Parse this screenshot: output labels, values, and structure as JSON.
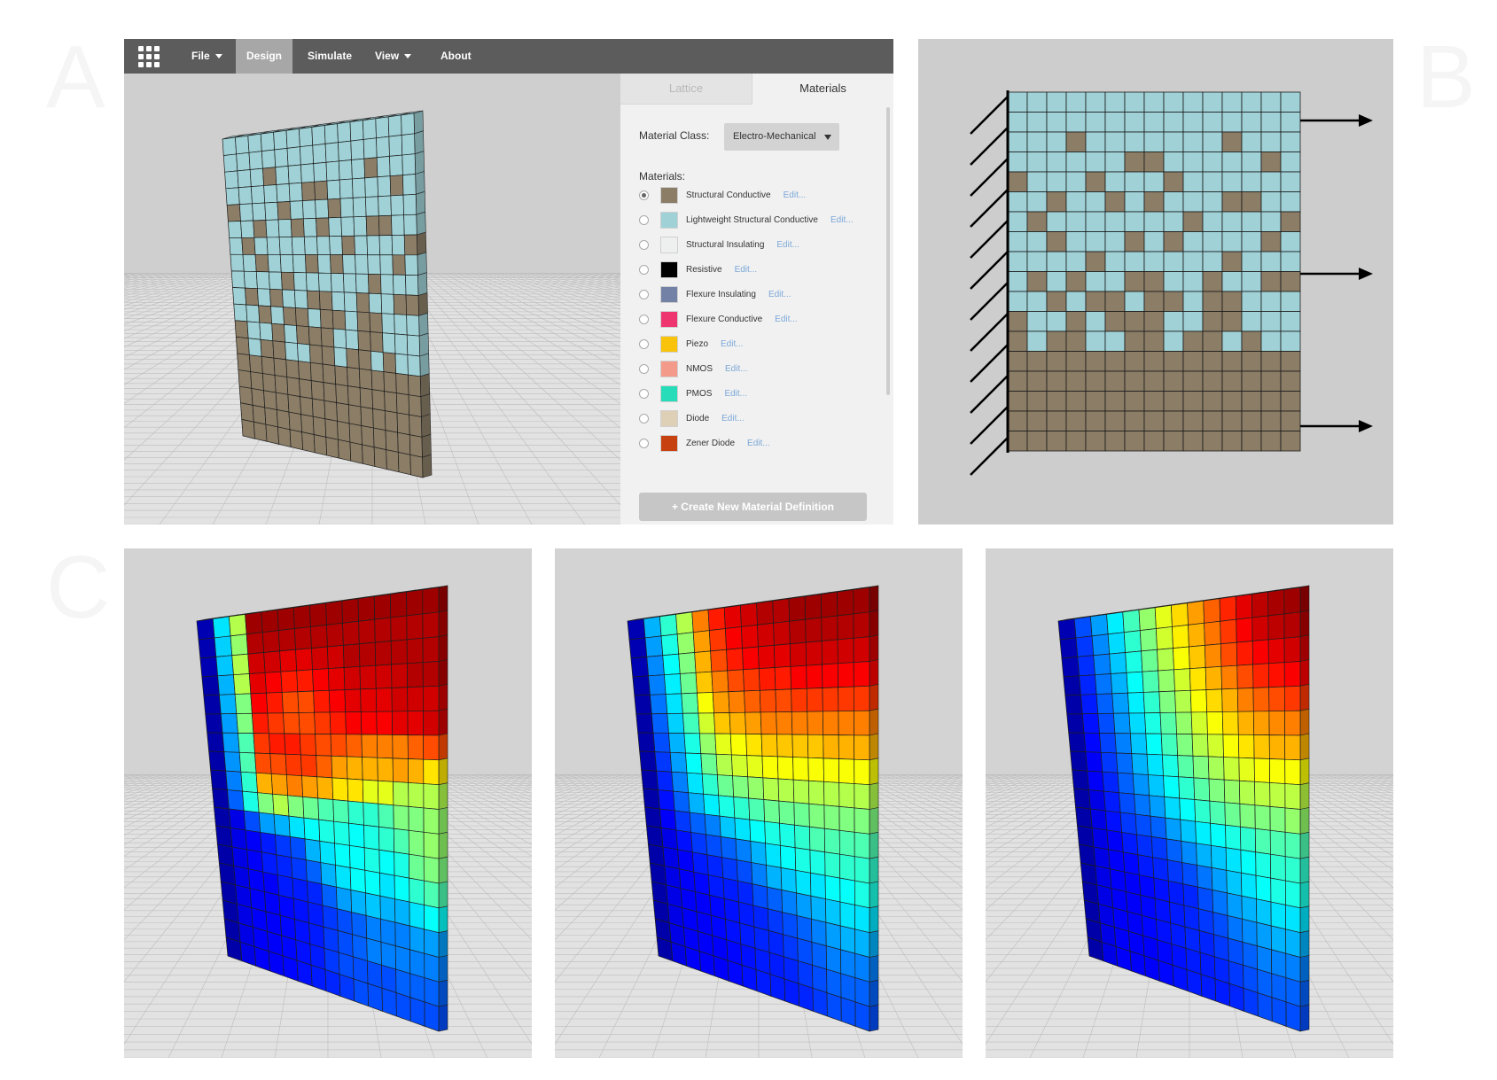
{
  "panel_letters": {
    "a": "A",
    "b": "B",
    "c": "C"
  },
  "menubar": {
    "file": "File",
    "design": "Design",
    "simulate": "Simulate",
    "view": "View",
    "about": "About"
  },
  "tabs": {
    "lattice": "Lattice",
    "materials": "Materials"
  },
  "material_class": {
    "label": "Material Class:",
    "value": "Electro-Mechanical"
  },
  "materials_heading": "Materials:",
  "edit_label": "Edit...",
  "materials": [
    {
      "name": "Structural Conductive",
      "color": "#8b7d66",
      "selected": true
    },
    {
      "name": "Lightweight Structural Conductive",
      "color": "#9fd1d6",
      "selected": false
    },
    {
      "name": "Structural Insulating",
      "color": "#eef0ef",
      "selected": false
    },
    {
      "name": "Resistive",
      "color": "#000000",
      "selected": false
    },
    {
      "name": "Flexure Insulating",
      "color": "#7481a6",
      "selected": false
    },
    {
      "name": "Flexure Conductive",
      "color": "#ee3570",
      "selected": false
    },
    {
      "name": "Piezo",
      "color": "#f9c20b",
      "selected": false
    },
    {
      "name": "NMOS",
      "color": "#f39a8a",
      "selected": false
    },
    {
      "name": "PMOS",
      "color": "#27dcb8",
      "selected": false
    },
    {
      "name": "Diode",
      "color": "#ddd0b7",
      "selected": false
    },
    {
      "name": "Zener Diode",
      "color": "#c6410f",
      "selected": false
    }
  ],
  "create_button": "+ Create New Material Definition",
  "colors": {
    "structural": "#8b7d66",
    "lightweight": "#9fd1d6",
    "menubar": "#5c5c5c"
  },
  "lattice_pattern": [
    "LLLLLLLLLLLLLLL",
    "LLLLLLLLLLLLLLL",
    "LLLSLLLLLLLSLLL",
    "LLLLLLSSLLLLLSL",
    "SLLLSLLLSLLLLLL",
    "LLSLLSLSLLLSSLL",
    "LSLLLLLLLSLLLLS",
    "LLSLLLSLSLLLLSL",
    "LLLLSLLLLLLSLLL",
    "LSLSLLSSLLSLLSS",
    "LLSLSSLSSLSSLLL",
    "SLLSLSSSLLSSLLL",
    "SLSSLLSSLSSLSLL",
    "SSSSSSSSSSSSSSS",
    "SSSSSSSSSSSSSSS",
    "SSSSSSSSSSSSSSS",
    "SSSSSSSSSSSSSSS",
    "SSSSSSSSSSSSSSS"
  ],
  "simulations": [
    {
      "field": [
        [
          0.05,
          0.35,
          0.55,
          0.97,
          0.97,
          0.97,
          0.97,
          0.97,
          0.97,
          0.97,
          0.97,
          0.97,
          0.97,
          0.97,
          0.97
        ],
        [
          0.05,
          0.33,
          0.52,
          0.95,
          0.95,
          0.95,
          0.95,
          0.95,
          0.95,
          0.95,
          0.95,
          0.95,
          0.95,
          0.95,
          0.95
        ],
        [
          0.05,
          0.32,
          0.55,
          0.92,
          0.92,
          0.9,
          0.9,
          0.92,
          0.92,
          0.95,
          0.95,
          0.95,
          0.95,
          0.95,
          0.95
        ],
        [
          0.04,
          0.3,
          0.55,
          0.9,
          0.88,
          0.85,
          0.85,
          0.88,
          0.9,
          0.92,
          0.92,
          0.92,
          0.93,
          0.95,
          0.95
        ],
        [
          0.04,
          0.3,
          0.5,
          0.88,
          0.85,
          0.8,
          0.8,
          0.85,
          0.88,
          0.9,
          0.9,
          0.9,
          0.92,
          0.92,
          0.92
        ],
        [
          0.04,
          0.28,
          0.5,
          0.85,
          0.82,
          0.8,
          0.8,
          0.82,
          0.85,
          0.88,
          0.88,
          0.88,
          0.9,
          0.9,
          0.92
        ],
        [
          0.04,
          0.28,
          0.45,
          0.82,
          0.85,
          0.85,
          0.82,
          0.8,
          0.8,
          0.78,
          0.75,
          0.75,
          0.75,
          0.78,
          0.8
        ],
        [
          0.04,
          0.27,
          0.45,
          0.8,
          0.8,
          0.82,
          0.82,
          0.78,
          0.72,
          0.7,
          0.7,
          0.7,
          0.72,
          0.7,
          0.65
        ],
        [
          0.04,
          0.25,
          0.42,
          0.7,
          0.72,
          0.75,
          0.72,
          0.7,
          0.65,
          0.65,
          0.6,
          0.6,
          0.55,
          0.55,
          0.55
        ],
        [
          0.04,
          0.22,
          0.4,
          0.5,
          0.55,
          0.5,
          0.48,
          0.45,
          0.45,
          0.42,
          0.42,
          0.45,
          0.5,
          0.5,
          0.52
        ],
        [
          0.04,
          0.1,
          0.2,
          0.28,
          0.3,
          0.35,
          0.38,
          0.4,
          0.4,
          0.38,
          0.4,
          0.42,
          0.45,
          0.5,
          0.52
        ],
        [
          0.04,
          0.1,
          0.12,
          0.15,
          0.18,
          0.2,
          0.3,
          0.35,
          0.38,
          0.38,
          0.4,
          0.38,
          0.4,
          0.48,
          0.5
        ],
        [
          0.04,
          0.1,
          0.12,
          0.15,
          0.16,
          0.18,
          0.22,
          0.3,
          0.35,
          0.38,
          0.38,
          0.35,
          0.38,
          0.42,
          0.45
        ],
        [
          0.04,
          0.1,
          0.12,
          0.12,
          0.15,
          0.15,
          0.16,
          0.22,
          0.28,
          0.3,
          0.32,
          0.3,
          0.3,
          0.35,
          0.38
        ],
        [
          0.04,
          0.1,
          0.12,
          0.12,
          0.13,
          0.14,
          0.15,
          0.18,
          0.2,
          0.22,
          0.25,
          0.25,
          0.25,
          0.28,
          0.28
        ],
        [
          0.04,
          0.1,
          0.12,
          0.12,
          0.13,
          0.14,
          0.15,
          0.18,
          0.2,
          0.22,
          0.25,
          0.25,
          0.25,
          0.25,
          0.25
        ],
        [
          0.04,
          0.1,
          0.12,
          0.12,
          0.13,
          0.14,
          0.15,
          0.18,
          0.2,
          0.2,
          0.2,
          0.2,
          0.22,
          0.22,
          0.22
        ],
        [
          0.04,
          0.1,
          0.12,
          0.12,
          0.13,
          0.14,
          0.15,
          0.16,
          0.18,
          0.2,
          0.2,
          0.2,
          0.2,
          0.2,
          0.2
        ]
      ]
    },
    {
      "field": [
        [
          0.05,
          0.3,
          0.42,
          0.55,
          0.75,
          0.85,
          0.9,
          0.92,
          0.95,
          0.95,
          0.97,
          0.97,
          0.97,
          0.97,
          0.97
        ],
        [
          0.05,
          0.28,
          0.4,
          0.52,
          0.72,
          0.82,
          0.88,
          0.9,
          0.92,
          0.93,
          0.95,
          0.95,
          0.95,
          0.95,
          0.95
        ],
        [
          0.05,
          0.26,
          0.38,
          0.5,
          0.7,
          0.8,
          0.85,
          0.88,
          0.9,
          0.9,
          0.92,
          0.92,
          0.92,
          0.92,
          0.92
        ],
        [
          0.04,
          0.25,
          0.36,
          0.48,
          0.68,
          0.75,
          0.8,
          0.82,
          0.85,
          0.85,
          0.88,
          0.88,
          0.88,
          0.88,
          0.88
        ],
        [
          0.04,
          0.24,
          0.35,
          0.46,
          0.62,
          0.72,
          0.75,
          0.78,
          0.8,
          0.8,
          0.82,
          0.82,
          0.82,
          0.82,
          0.82
        ],
        [
          0.04,
          0.22,
          0.33,
          0.44,
          0.58,
          0.68,
          0.7,
          0.72,
          0.75,
          0.75,
          0.75,
          0.75,
          0.75,
          0.75,
          0.75
        ],
        [
          0.04,
          0.2,
          0.3,
          0.4,
          0.52,
          0.6,
          0.62,
          0.65,
          0.68,
          0.68,
          0.68,
          0.68,
          0.7,
          0.7,
          0.7
        ],
        [
          0.04,
          0.18,
          0.28,
          0.38,
          0.48,
          0.55,
          0.58,
          0.6,
          0.62,
          0.62,
          0.62,
          0.62,
          0.62,
          0.62,
          0.62
        ],
        [
          0.04,
          0.16,
          0.25,
          0.35,
          0.42,
          0.48,
          0.5,
          0.52,
          0.55,
          0.55,
          0.55,
          0.55,
          0.55,
          0.55,
          0.55
        ],
        [
          0.04,
          0.14,
          0.22,
          0.3,
          0.36,
          0.4,
          0.42,
          0.45,
          0.48,
          0.48,
          0.48,
          0.5,
          0.5,
          0.5,
          0.5
        ],
        [
          0.04,
          0.12,
          0.18,
          0.22,
          0.25,
          0.32,
          0.35,
          0.38,
          0.4,
          0.4,
          0.42,
          0.45,
          0.45,
          0.45,
          0.45
        ],
        [
          0.04,
          0.1,
          0.14,
          0.18,
          0.2,
          0.22,
          0.25,
          0.3,
          0.35,
          0.38,
          0.4,
          0.4,
          0.42,
          0.42,
          0.42
        ],
        [
          0.04,
          0.1,
          0.12,
          0.15,
          0.16,
          0.18,
          0.2,
          0.25,
          0.3,
          0.32,
          0.35,
          0.35,
          0.38,
          0.38,
          0.4
        ],
        [
          0.04,
          0.1,
          0.12,
          0.13,
          0.15,
          0.15,
          0.16,
          0.2,
          0.22,
          0.25,
          0.28,
          0.3,
          0.32,
          0.35,
          0.35
        ],
        [
          0.04,
          0.1,
          0.12,
          0.12,
          0.13,
          0.14,
          0.15,
          0.16,
          0.18,
          0.2,
          0.22,
          0.25,
          0.28,
          0.3,
          0.3
        ],
        [
          0.04,
          0.1,
          0.12,
          0.12,
          0.13,
          0.14,
          0.15,
          0.16,
          0.16,
          0.18,
          0.2,
          0.22,
          0.25,
          0.25,
          0.25
        ],
        [
          0.04,
          0.1,
          0.12,
          0.12,
          0.12,
          0.13,
          0.14,
          0.15,
          0.15,
          0.16,
          0.18,
          0.2,
          0.22,
          0.22,
          0.22
        ],
        [
          0.04,
          0.1,
          0.12,
          0.12,
          0.12,
          0.13,
          0.14,
          0.15,
          0.15,
          0.15,
          0.16,
          0.18,
          0.2,
          0.2,
          0.2
        ]
      ]
    },
    {
      "field": [
        [
          0.05,
          0.2,
          0.28,
          0.36,
          0.44,
          0.52,
          0.6,
          0.66,
          0.72,
          0.78,
          0.84,
          0.9,
          0.94,
          0.96,
          0.97
        ],
        [
          0.05,
          0.18,
          0.26,
          0.34,
          0.42,
          0.5,
          0.58,
          0.64,
          0.7,
          0.76,
          0.82,
          0.88,
          0.92,
          0.94,
          0.95
        ],
        [
          0.05,
          0.17,
          0.25,
          0.32,
          0.4,
          0.48,
          0.55,
          0.62,
          0.68,
          0.74,
          0.8,
          0.85,
          0.88,
          0.9,
          0.92
        ],
        [
          0.04,
          0.16,
          0.24,
          0.3,
          0.38,
          0.45,
          0.52,
          0.58,
          0.65,
          0.7,
          0.75,
          0.8,
          0.84,
          0.86,
          0.88
        ],
        [
          0.04,
          0.15,
          0.22,
          0.28,
          0.36,
          0.42,
          0.5,
          0.55,
          0.62,
          0.66,
          0.7,
          0.75,
          0.78,
          0.8,
          0.82
        ],
        [
          0.04,
          0.14,
          0.2,
          0.27,
          0.34,
          0.4,
          0.46,
          0.52,
          0.58,
          0.62,
          0.66,
          0.7,
          0.72,
          0.74,
          0.75
        ],
        [
          0.04,
          0.13,
          0.19,
          0.25,
          0.32,
          0.38,
          0.44,
          0.5,
          0.55,
          0.58,
          0.62,
          0.65,
          0.68,
          0.7,
          0.7
        ],
        [
          0.04,
          0.12,
          0.18,
          0.23,
          0.3,
          0.35,
          0.4,
          0.46,
          0.5,
          0.54,
          0.57,
          0.6,
          0.62,
          0.62,
          0.62
        ],
        [
          0.04,
          0.12,
          0.16,
          0.22,
          0.27,
          0.32,
          0.38,
          0.42,
          0.46,
          0.5,
          0.52,
          0.55,
          0.56,
          0.56,
          0.56
        ],
        [
          0.04,
          0.1,
          0.15,
          0.2,
          0.24,
          0.28,
          0.34,
          0.38,
          0.42,
          0.45,
          0.48,
          0.5,
          0.5,
          0.5,
          0.52
        ],
        [
          0.04,
          0.1,
          0.14,
          0.18,
          0.2,
          0.22,
          0.28,
          0.32,
          0.36,
          0.38,
          0.4,
          0.42,
          0.45,
          0.45,
          0.45
        ],
        [
          0.04,
          0.1,
          0.12,
          0.15,
          0.17,
          0.18,
          0.22,
          0.26,
          0.3,
          0.32,
          0.35,
          0.38,
          0.4,
          0.42,
          0.42
        ],
        [
          0.04,
          0.1,
          0.12,
          0.13,
          0.15,
          0.16,
          0.18,
          0.2,
          0.24,
          0.28,
          0.32,
          0.35,
          0.38,
          0.4,
          0.4
        ],
        [
          0.04,
          0.1,
          0.12,
          0.12,
          0.13,
          0.14,
          0.15,
          0.16,
          0.2,
          0.24,
          0.28,
          0.3,
          0.32,
          0.35,
          0.35
        ],
        [
          0.04,
          0.1,
          0.12,
          0.12,
          0.13,
          0.14,
          0.15,
          0.16,
          0.18,
          0.2,
          0.24,
          0.26,
          0.28,
          0.3,
          0.3
        ],
        [
          0.04,
          0.1,
          0.12,
          0.12,
          0.13,
          0.14,
          0.15,
          0.16,
          0.16,
          0.18,
          0.2,
          0.22,
          0.25,
          0.25,
          0.25
        ],
        [
          0.04,
          0.1,
          0.12,
          0.12,
          0.12,
          0.13,
          0.14,
          0.15,
          0.15,
          0.16,
          0.18,
          0.2,
          0.22,
          0.22,
          0.22
        ],
        [
          0.04,
          0.1,
          0.12,
          0.12,
          0.12,
          0.13,
          0.14,
          0.15,
          0.15,
          0.15,
          0.16,
          0.18,
          0.2,
          0.2,
          0.2
        ]
      ]
    }
  ]
}
